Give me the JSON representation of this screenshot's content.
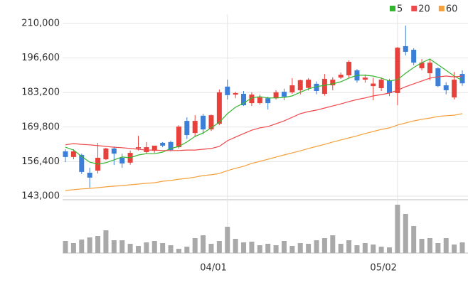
{
  "chart_data": {
    "type": "candlestick",
    "categories": [
      null,
      null,
      null,
      null,
      null,
      null,
      null,
      null,
      null,
      null,
      null,
      null,
      null,
      null,
      null,
      null,
      null,
      null,
      null,
      null,
      "04/01",
      null,
      null,
      null,
      null,
      null,
      null,
      null,
      null,
      null,
      null,
      null,
      null,
      null,
      null,
      null,
      null,
      null,
      null,
      null,
      null,
      "05/02",
      null,
      null,
      null,
      null,
      null,
      null,
      null,
      null
    ],
    "candles": {
      "open": [
        160400,
        158200,
        159000,
        152100,
        152900,
        157300,
        161500,
        157900,
        156000,
        161500,
        160100,
        160600,
        163700,
        164000,
        162000,
        172200,
        167500,
        174200,
        168900,
        171100,
        185500,
        182400,
        182700,
        179100,
        179100,
        181000,
        181000,
        183500,
        183300,
        184100,
        185000,
        186600,
        182700,
        186000,
        189000,
        189900,
        191800,
        188200,
        185700,
        184900,
        187900,
        183000,
        201200,
        199800,
        192600,
        190700,
        192600,
        186000,
        181300,
        190400
      ],
      "high": [
        161200,
        161200,
        159500,
        154000,
        163700,
        161800,
        162300,
        159500,
        160700,
        166400,
        164000,
        162300,
        164000,
        164500,
        170500,
        173600,
        174400,
        175000,
        174700,
        184400,
        188200,
        183500,
        183800,
        183300,
        182400,
        181600,
        184100,
        184700,
        188800,
        188200,
        188800,
        187500,
        190400,
        189100,
        191000,
        195700,
        192300,
        190200,
        189000,
        189000,
        188500,
        200900,
        209200,
        200400,
        196200,
        196000,
        193000,
        187200,
        191200,
        191800
      ],
      "low": [
        156200,
        157300,
        151600,
        146300,
        151800,
        157000,
        155100,
        154000,
        155200,
        160700,
        159500,
        159800,
        162000,
        160400,
        161500,
        165200,
        166200,
        167000,
        168300,
        170500,
        180500,
        181000,
        178000,
        178000,
        178500,
        176600,
        180500,
        180200,
        182700,
        182500,
        184000,
        182500,
        182000,
        184100,
        188500,
        188800,
        187000,
        187000,
        180200,
        183800,
        181800,
        178300,
        197600,
        193800,
        191800,
        188000,
        185300,
        182500,
        180500,
        185800
      ],
      "close": [
        158200,
        160400,
        152400,
        150200,
        157900,
        161500,
        159500,
        155700,
        159800,
        162000,
        162000,
        162600,
        162600,
        160900,
        170000,
        166700,
        172200,
        168900,
        174400,
        183300,
        182200,
        183000,
        178300,
        182400,
        181300,
        179100,
        183300,
        181600,
        186000,
        188000,
        188200,
        183800,
        188500,
        188200,
        190100,
        195100,
        187900,
        189000,
        186700,
        188200,
        183000,
        200600,
        199000,
        194800,
        194800,
        194800,
        185700,
        184100,
        188200,
        186800
      ]
    },
    "up_color": "#e8413b",
    "down_color": "#3b7fd9",
    "series": [
      {
        "name": "5",
        "color": "#33b52e",
        "values": [
          162000,
          160900,
          158400,
          156200,
          155400,
          156000,
          157100,
          158200,
          157900,
          159000,
          159500,
          159500,
          160100,
          161500,
          162300,
          164000,
          166200,
          167500,
          169500,
          171700,
          175000,
          177500,
          179100,
          181100,
          181600,
          181100,
          181100,
          181300,
          181900,
          183300,
          184600,
          185500,
          186000,
          186600,
          187400,
          188800,
          189900,
          189900,
          189600,
          188800,
          187700,
          188200,
          190700,
          192900,
          194800,
          196200,
          194000,
          191800,
          189600,
          187900
        ]
      },
      {
        "name": "20",
        "color": "#f0474a",
        "values": [
          162900,
          163400,
          163100,
          162900,
          162600,
          162300,
          162000,
          161800,
          161500,
          161200,
          160900,
          160900,
          160700,
          160700,
          160700,
          160900,
          160900,
          161200,
          161500,
          162300,
          164500,
          165900,
          167300,
          168600,
          169500,
          170000,
          171100,
          172200,
          173600,
          175000,
          175800,
          176400,
          177200,
          178000,
          178800,
          179700,
          180500,
          181100,
          181900,
          182400,
          183000,
          184100,
          185500,
          186600,
          187700,
          188800,
          189300,
          189600,
          189300,
          189600
        ]
      },
      {
        "name": "60",
        "color": "#f5a03a",
        "values": [
          145200,
          145500,
          145800,
          146000,
          146300,
          146600,
          146900,
          147100,
          147400,
          147700,
          148000,
          148200,
          148800,
          149100,
          149600,
          149900,
          150400,
          151000,
          151300,
          151800,
          152900,
          153800,
          154600,
          155700,
          156500,
          157300,
          158200,
          159000,
          159800,
          160600,
          161500,
          162300,
          163100,
          164000,
          164800,
          165600,
          166400,
          167300,
          168100,
          168900,
          169500,
          170600,
          171400,
          172200,
          172800,
          173300,
          173900,
          174200,
          174400,
          175000
        ]
      }
    ],
    "volume": [
      17,
      14,
      19,
      22,
      24,
      32,
      18,
      18,
      13,
      10,
      15,
      17,
      14,
      11,
      6,
      9,
      21,
      25,
      13,
      17,
      37,
      20,
      15,
      16,
      11,
      13,
      11,
      17,
      10,
      14,
      13,
      18,
      21,
      25,
      13,
      18,
      11,
      14,
      12,
      9,
      8,
      68,
      55,
      38,
      20,
      21,
      14,
      21,
      12,
      15
    ],
    "volume_color": "#a9a9a9",
    "ylim": [
      143000,
      210000
    ],
    "yticks": [
      {
        "value": 143000,
        "label": "143,000"
      },
      {
        "value": 156400,
        "label": "156,400"
      },
      {
        "value": 169800,
        "label": "169,800"
      },
      {
        "value": 183200,
        "label": "183,200"
      },
      {
        "value": 196600,
        "label": "196,600"
      },
      {
        "value": 210000,
        "label": "210,000"
      }
    ],
    "grid": true,
    "legend": "top-right"
  }
}
